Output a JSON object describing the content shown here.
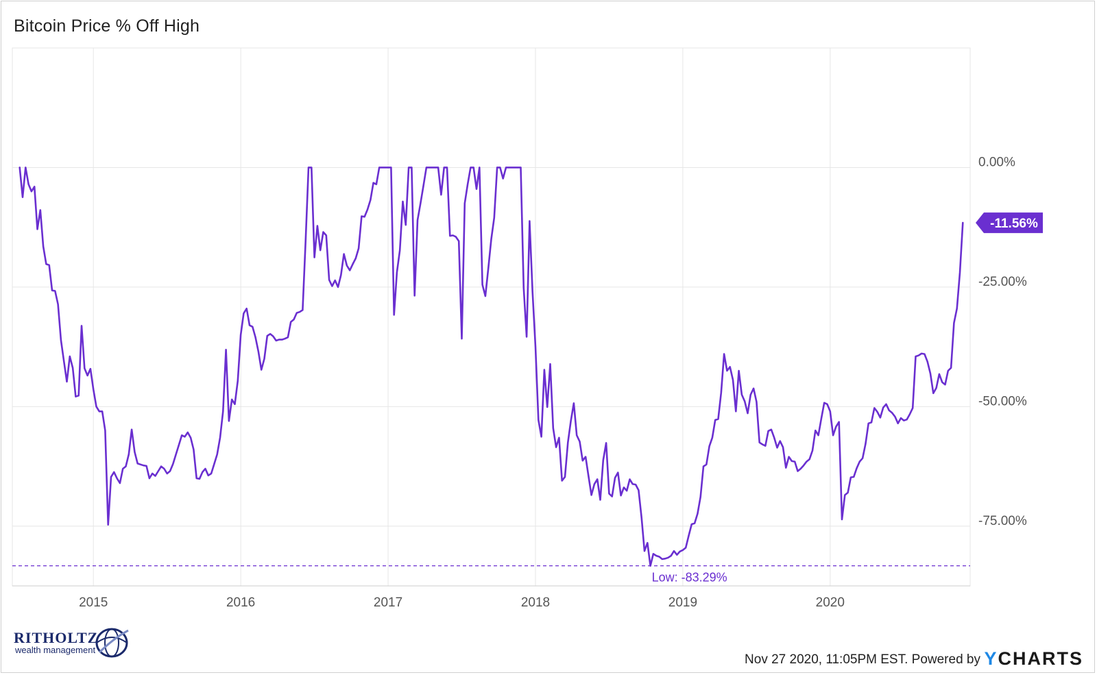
{
  "title": "Bitcoin Price % Off High",
  "footer": {
    "timestamp": "Nov 27 2020, 11:05PM EST. Powered by",
    "ycharts_y": "Y",
    "ycharts_rest": "CHARTS"
  },
  "brand": {
    "name": "RITHOLTZ",
    "sub": "wealth management"
  },
  "colors": {
    "line": "#6a2fd0",
    "grid": "#e6e6e6",
    "label_bg": "#6a2fd0"
  },
  "chart_data": {
    "type": "line",
    "series": [
      {
        "x": [
          2014.5,
          2014.52,
          2014.54,
          2014.56,
          2014.58,
          2014.6,
          2014.62,
          2014.64,
          2014.66,
          2014.68,
          2014.7,
          2014.72,
          2014.74,
          2014.76,
          2014.78,
          2014.8,
          2014.82,
          2014.84,
          2014.86,
          2014.88,
          2014.9,
          2014.92,
          2014.94,
          2014.96,
          2014.98,
          2015.0,
          2015.02,
          2015.04,
          2015.06,
          2015.08,
          2015.1,
          2015.12,
          2015.14,
          2015.16,
          2015.18,
          2015.2,
          2015.22,
          2015.24,
          2015.26,
          2015.28,
          2015.3,
          2015.32,
          2015.34,
          2015.36,
          2015.38,
          2015.4,
          2015.42,
          2015.44,
          2015.46,
          2015.48,
          2015.5,
          2015.52,
          2015.54,
          2015.56,
          2015.58,
          2015.6,
          2015.62,
          2015.64,
          2015.66,
          2015.68,
          2015.7,
          2015.72,
          2015.74,
          2015.76,
          2015.78,
          2015.8,
          2015.82,
          2015.84,
          2015.86,
          2015.88,
          2015.9,
          2015.92,
          2015.94,
          2015.96,
          2015.98,
          2016.0,
          2016.02,
          2016.04,
          2016.06,
          2016.08,
          2016.1,
          2016.12,
          2016.14,
          2016.16,
          2016.18,
          2016.2,
          2016.22,
          2016.24,
          2016.26,
          2016.28,
          2016.3,
          2016.32,
          2016.34,
          2016.36,
          2016.38,
          2016.4,
          2016.42,
          2016.44,
          2016.46,
          2016.48,
          2016.5,
          2016.52,
          2016.54,
          2016.56,
          2016.58,
          2016.6,
          2016.62,
          2016.64,
          2016.66,
          2016.68,
          2016.7,
          2016.72,
          2016.74,
          2016.76,
          2016.78,
          2016.8,
          2016.82,
          2016.84,
          2016.86,
          2016.88,
          2016.9,
          2016.92,
          2016.94,
          2016.96,
          2016.98,
          2017.0,
          2017.02,
          2017.04,
          2017.06,
          2017.08,
          2017.1,
          2017.12,
          2017.14,
          2017.16,
          2017.18,
          2017.2,
          2017.22,
          2017.24,
          2017.26,
          2017.28,
          2017.3,
          2017.32,
          2017.34,
          2017.36,
          2017.38,
          2017.4,
          2017.42,
          2017.44,
          2017.46,
          2017.48,
          2017.5,
          2017.52,
          2017.54,
          2017.56,
          2017.58,
          2017.6,
          2017.62,
          2017.64,
          2017.66,
          2017.68,
          2017.7,
          2017.72,
          2017.74,
          2017.76,
          2017.78,
          2017.8,
          2017.82,
          2017.84,
          2017.86,
          2017.88,
          2017.9,
          2017.92,
          2017.94,
          2017.96,
          2017.98,
          2018.0,
          2018.02,
          2018.04,
          2018.06,
          2018.08,
          2018.1,
          2018.12,
          2018.14,
          2018.16,
          2018.18,
          2018.2,
          2018.22,
          2018.24,
          2018.26,
          2018.28,
          2018.3,
          2018.32,
          2018.34,
          2018.36,
          2018.38,
          2018.4,
          2018.42,
          2018.44,
          2018.46,
          2018.48,
          2018.5,
          2018.52,
          2018.54,
          2018.56,
          2018.58,
          2018.6,
          2018.62,
          2018.64,
          2018.66,
          2018.68,
          2018.7,
          2018.72,
          2018.74,
          2018.76,
          2018.78,
          2018.8,
          2018.82,
          2018.84,
          2018.86,
          2018.88,
          2018.9,
          2018.92,
          2018.94,
          2018.96,
          2018.98,
          2019.0,
          2019.02,
          2019.04,
          2019.06,
          2019.08,
          2019.1,
          2019.12,
          2019.14,
          2019.16,
          2019.18,
          2019.2,
          2019.22,
          2019.24,
          2019.26,
          2019.28,
          2019.3,
          2019.32,
          2019.34,
          2019.36,
          2019.38,
          2019.4,
          2019.42,
          2019.44,
          2019.46,
          2019.48,
          2019.5,
          2019.52,
          2019.54,
          2019.56,
          2019.58,
          2019.6,
          2019.62,
          2019.64,
          2019.66,
          2019.68,
          2019.7,
          2019.72,
          2019.74,
          2019.76,
          2019.78,
          2019.8,
          2019.82,
          2019.84,
          2019.86,
          2019.88,
          2019.9,
          2019.92,
          2019.94,
          2019.96,
          2019.98,
          2020.0,
          2020.02,
          2020.04,
          2020.06,
          2020.08,
          2020.1,
          2020.12,
          2020.14,
          2020.16,
          2020.18,
          2020.2,
          2020.22,
          2020.24,
          2020.26,
          2020.28,
          2020.3,
          2020.32,
          2020.34,
          2020.36,
          2020.38,
          2020.4,
          2020.42,
          2020.44,
          2020.46,
          2020.48,
          2020.5,
          2020.52,
          2020.54,
          2020.56,
          2020.58,
          2020.6,
          2020.62,
          2020.64,
          2020.66,
          2020.68,
          2020.7,
          2020.72,
          2020.74,
          2020.76,
          2020.78,
          2020.8,
          2020.82,
          2020.84,
          2020.86,
          2020.88,
          2020.9
        ],
        "y": [
          0.0,
          -6.2,
          0.0,
          -3.5,
          -5.0,
          -4.0,
          -12.9,
          -8.9,
          -16.5,
          -20.2,
          -20.4,
          -25.7,
          -25.8,
          -28.6,
          -36.1,
          -40.5,
          -44.8,
          -39.5,
          -41.9,
          -47.9,
          -47.7,
          -33.1,
          -42.0,
          -43.5,
          -42.1,
          -46.4,
          -50.0,
          -51.0,
          -51.0,
          -55.0,
          -74.7,
          -64.7,
          -63.7,
          -65.0,
          -66.0,
          -63.0,
          -62.5,
          -60.0,
          -54.8,
          -59.5,
          -61.9,
          -62.1,
          -62.3,
          -62.4,
          -65.0,
          -64.0,
          -64.5,
          -63.5,
          -62.5,
          -63.0,
          -64.0,
          -63.5,
          -62.0,
          -60.0,
          -58.0,
          -56.0,
          -56.3,
          -55.4,
          -56.5,
          -59.0,
          -65.0,
          -65.1,
          -63.7,
          -63.0,
          -64.4,
          -64.0,
          -62.0,
          -60.0,
          -56.5,
          -51.0,
          -38.1,
          -53.0,
          -48.5,
          -49.5,
          -44.6,
          -35.0,
          -30.5,
          -29.5,
          -33.0,
          -33.3,
          -35.5,
          -38.5,
          -42.3,
          -40.0,
          -35.2,
          -34.8,
          -35.3,
          -36.2,
          -36.0,
          -36.0,
          -35.8,
          -35.5,
          -32.3,
          -31.8,
          -30.4,
          -30.2,
          -29.8,
          -15.5,
          0.0,
          0.0,
          -18.8,
          -12.2,
          -17.3,
          -13.5,
          -14.2,
          -23.5,
          -24.8,
          -23.6,
          -25.0,
          -22.5,
          -18.1,
          -20.5,
          -21.5,
          -20.2,
          -19.0,
          -16.9,
          -10.2,
          -10.3,
          -8.8,
          -6.8,
          -3.2,
          -3.5,
          0.0,
          0.0,
          0.0,
          0.0,
          0.0,
          -30.8,
          -21.9,
          -17.3,
          -7.1,
          -12.0,
          0.0,
          0.0,
          -26.8,
          -11.0,
          -7.5,
          -3.8,
          0.0,
          0.0,
          0.0,
          0.0,
          0.0,
          -5.7,
          0.0,
          0.0,
          -14.3,
          -14.2,
          -14.5,
          -15.4,
          -35.8,
          -7.5,
          -3.5,
          0.0,
          0.0,
          -4.5,
          0.0,
          -24.5,
          -26.9,
          -21.1,
          -15.0,
          -10.5,
          0.0,
          0.0,
          -2.3,
          0.0,
          0.0,
          0.0,
          0.0,
          0.0,
          0.0,
          -25.2,
          -35.4,
          -11.2,
          -26.0,
          -37.5,
          -52.8,
          -56.3,
          -42.3,
          -50.1,
          -41.1,
          -54.5,
          -58.5,
          -56.5,
          -65.5,
          -64.7,
          -57.5,
          -53.0,
          -49.3,
          -56.0,
          -57.3,
          -61.3,
          -60.5,
          -64.5,
          -68.5,
          -66.2,
          -65.2,
          -69.5,
          -61.2,
          -57.6,
          -68.2,
          -68.8,
          -64.9,
          -63.8,
          -68.6,
          -66.9,
          -67.6,
          -65.2,
          -66.2,
          -66.3,
          -67.5,
          -73.2,
          -80.2,
          -78.5,
          -83.3,
          -80.8,
          -81.2,
          -81.4,
          -81.9,
          -81.8,
          -81.6,
          -81.2,
          -80.2,
          -81.0,
          -80.3,
          -80.0,
          -79.5,
          -77.0,
          -74.6,
          -74.4,
          -72.4,
          -68.9,
          -62.5,
          -62.1,
          -58.3,
          -56.5,
          -52.8,
          -52.6,
          -47.1,
          -39.0,
          -42.5,
          -41.7,
          -44.4,
          -51.0,
          -42.5,
          -47.5,
          -48.9,
          -51.4,
          -47.5,
          -46.2,
          -49.0,
          -57.5,
          -57.9,
          -58.2,
          -55.1,
          -54.8,
          -56.5,
          -58.6,
          -57.2,
          -58.5,
          -62.8,
          -60.5,
          -61.4,
          -61.5,
          -63.5,
          -63.0,
          -62.3,
          -61.5,
          -61.0,
          -59.2,
          -55.0,
          -56.0,
          -52.5,
          -49.2,
          -49.5,
          -51.0,
          -56.0,
          -54.2,
          -53.2,
          -73.6,
          -68.5,
          -68.0,
          -64.8,
          -64.7,
          -62.9,
          -61.5,
          -60.8,
          -57.8,
          -53.5,
          -53.3,
          -50.3,
          -51.1,
          -52.3,
          -50.2,
          -49.5,
          -50.8,
          -51.3,
          -52.1,
          -53.5,
          -52.4,
          -52.9,
          -52.7,
          -51.6,
          -50.3,
          -39.5,
          -39.3,
          -38.9,
          -39.0,
          -40.6,
          -43.1,
          -47.2,
          -46.1,
          -43.2,
          -44.9,
          -45.4,
          -42.5,
          -41.9,
          -32.5,
          -29.5,
          -22.0,
          -11.56
        ]
      }
    ],
    "ylim": [
      -87.5,
      25
    ],
    "xlim": [
      2014.45,
      2020.95
    ],
    "y_ticks": [
      "0.00%",
      "-25.00%",
      "-50.00%",
      "-75.00%"
    ],
    "y_tick_values": [
      0,
      -25,
      -50,
      -75
    ],
    "x_ticks": [
      "2015",
      "2016",
      "2017",
      "2018",
      "2019",
      "2020"
    ],
    "x_tick_values": [
      2015,
      2016,
      2017,
      2018,
      2019,
      2020
    ],
    "low": {
      "value": -83.29,
      "label": "Low: -83.29%"
    },
    "last": {
      "value": -11.56,
      "label": "-11.56%"
    },
    "grid": true
  }
}
